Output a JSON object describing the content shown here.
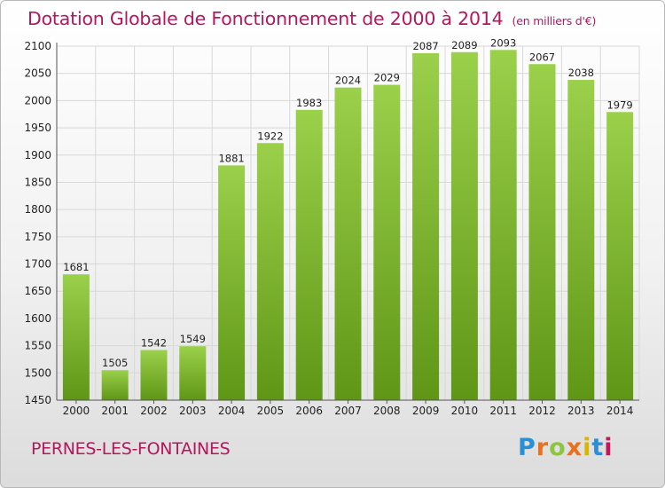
{
  "header": {
    "title": "Dotation Globale de Fonctionnement de 2000 à 2014",
    "subtitle": "(en milliers d'€)"
  },
  "footer": {
    "commune": "PERNES-LES-FONTAINES",
    "logo": {
      "letters": [
        "P",
        "r",
        "o",
        "x",
        "i",
        "t",
        "i"
      ],
      "colors": [
        "#2b8fd6",
        "#e8701f",
        "#8cc63f",
        "#e8701f",
        "#d7b500",
        "#2b8fd6",
        "#c2185b"
      ]
    }
  },
  "colors": {
    "bar_light": "#9ad04a",
    "bar_dark": "#5f9616",
    "grid": "#d8d8d8",
    "axis": "#555555",
    "accent": "#b5175d"
  },
  "chart_data": {
    "type": "bar",
    "title": "Dotation Globale de Fonctionnement de 2000 à 2014",
    "subtitle": "(en milliers d'€)",
    "categories": [
      "2000",
      "2001",
      "2002",
      "2003",
      "2004",
      "2005",
      "2006",
      "2007",
      "2008",
      "2009",
      "2010",
      "2011",
      "2012",
      "2013",
      "2014"
    ],
    "values": [
      1681,
      1505,
      1542,
      1549,
      1881,
      1922,
      1983,
      2024,
      2029,
      2087,
      2089,
      2093,
      2067,
      2038,
      1979
    ],
    "ylim": [
      1450,
      2100
    ],
    "yticks": [
      1450,
      1500,
      1550,
      1600,
      1650,
      1700,
      1750,
      1800,
      1850,
      1900,
      1950,
      2000,
      2050,
      2100
    ],
    "grid": true,
    "legend": "none",
    "xlabel": "",
    "ylabel": ""
  }
}
